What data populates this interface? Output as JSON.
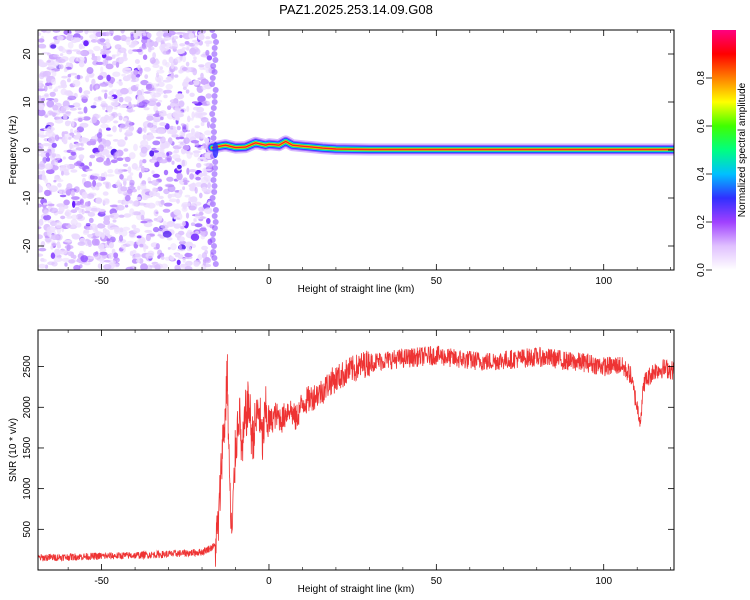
{
  "title": "PAZ1.2025.253.14.09.G08",
  "chart_data": [
    {
      "type": "heatmap",
      "title": "PAZ1.2025.253.14.09.G08",
      "xlabel": "Height of straight line (km)",
      "ylabel": "Frequency (Hz)",
      "xlim": [
        -69,
        121
      ],
      "ylim": [
        -25,
        25
      ],
      "xticks": [
        -50,
        0,
        50,
        100
      ],
      "yticks": [
        -20,
        -10,
        0,
        10,
        20
      ],
      "noise_region_x": [
        -69,
        -17
      ],
      "signal_line": {
        "x": [
          -17,
          -13,
          -10,
          -7,
          -4,
          -1,
          0,
          3,
          5,
          7,
          10,
          13,
          16,
          20,
          30,
          50,
          80,
          121
        ],
        "freq": [
          0.5,
          1.0,
          0.5,
          0.6,
          1.5,
          1.0,
          1.2,
          1.0,
          1.8,
          1.0,
          0.8,
          0.6,
          0.4,
          0.2,
          0.1,
          0.1,
          0.1,
          0.1
        ]
      },
      "colorbar": {
        "label": "Normalized spectral amplitude",
        "range": [
          0.0,
          1.0
        ],
        "ticks": [
          "0.0",
          "0.2",
          "0.4",
          "0.6",
          "0.8"
        ],
        "colors": [
          "#ffffff",
          "#e0c0ff",
          "#a040ff",
          "#3030ff",
          "#00c0ff",
          "#00ff80",
          "#40ff00",
          "#ffff00",
          "#ff8000",
          "#ff0000",
          "#ff0080"
        ]
      }
    },
    {
      "type": "line",
      "xlabel": "Height of straight line (km)",
      "ylabel": "SNR (10 * v/v)",
      "xlim": [
        -69,
        121
      ],
      "ylim": [
        0,
        2950
      ],
      "xticks": [
        -50,
        0,
        50,
        100
      ],
      "yticks": [
        500,
        1000,
        1500,
        2000,
        2500
      ],
      "series": [
        {
          "name": "SNR",
          "color": "#ee3333",
          "x": [
            -69,
            -60,
            -50,
            -40,
            -30,
            -20,
            -16,
            -15,
            -14,
            -13,
            -12.5,
            -12,
            -11.5,
            -11,
            -10.5,
            -10,
            -9.5,
            -9,
            -8,
            -7,
            -6,
            -5,
            -4,
            -3,
            -2,
            -1,
            0,
            2,
            4,
            6,
            8,
            10,
            12,
            14,
            16,
            18,
            20,
            22,
            24,
            26,
            28,
            30,
            35,
            40,
            45,
            50,
            55,
            60,
            65,
            70,
            75,
            80,
            85,
            90,
            95,
            100,
            105,
            108,
            110,
            111,
            112,
            115,
            118,
            121
          ],
          "y": [
            150,
            160,
            170,
            180,
            195,
            220,
            300,
            600,
            1500,
            1900,
            2500,
            1500,
            700,
            400,
            1000,
            1500,
            1700,
            2000,
            1400,
            1900,
            2050,
            1600,
            1800,
            2000,
            1550,
            1950,
            1800,
            1900,
            1850,
            2000,
            1850,
            2050,
            2100,
            2150,
            2200,
            2300,
            2350,
            2400,
            2450,
            2480,
            2520,
            2550,
            2580,
            2600,
            2620,
            2640,
            2600,
            2580,
            2560,
            2580,
            2600,
            2620,
            2600,
            2560,
            2550,
            2500,
            2520,
            2400,
            2000,
            1850,
            2300,
            2450,
            2480,
            2450
          ]
        }
      ]
    }
  ]
}
